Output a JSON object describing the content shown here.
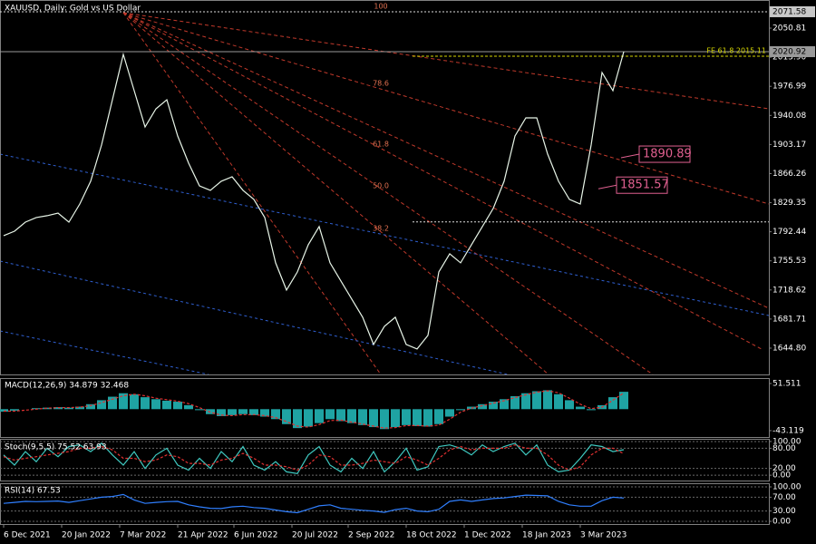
{
  "chart_data": [
    {
      "type": "line",
      "title": "XAUUSD, Daily:  Gold vs US Dollar",
      "color": "#e8f5e8",
      "x": [
        0,
        6,
        12,
        18,
        24,
        30,
        36,
        42,
        48,
        54,
        60,
        66,
        72,
        78,
        84,
        90,
        96,
        102,
        108,
        114,
        120,
        126,
        132,
        138,
        144,
        150,
        156,
        162,
        168,
        174,
        180,
        186,
        192,
        198,
        204,
        210,
        216,
        222,
        228,
        234,
        240,
        246,
        252,
        258,
        264,
        270,
        276,
        282,
        288,
        294,
        300,
        306,
        312,
        318,
        324,
        330,
        336,
        342
      ],
      "values": [
        1787.5,
        1793.2,
        1804.7,
        1810.5,
        1812.8,
        1816.2,
        1804.7,
        1827.7,
        1856.5,
        1902.5,
        1960.0,
        2017.5,
        1971.5,
        1925.5,
        1948.5,
        1960.0,
        1914.0,
        1879.5,
        1850.7,
        1845.0,
        1856.5,
        1862.2,
        1845.0,
        1833.5,
        1810.5,
        1753.0,
        1718.5,
        1741.5,
        1776.0,
        1799.0,
        1753.0,
        1730.0,
        1707.0,
        1684.0,
        1649.5,
        1672.5,
        1684.0,
        1649.5,
        1643.7,
        1661.0,
        1741.5,
        1764.5,
        1753.0,
        1776.0,
        1799.0,
        1822.0,
        1856.5,
        1914.0,
        1937.0,
        1937.0,
        1891.0,
        1856.5,
        1833.5,
        1827.7,
        1902.5,
        1994.5,
        1971.5,
        2020.92
      ],
      "xlim": [
        -2,
        422
      ],
      "xticks": [
        {
          "value": 0,
          "label": "6 Dec 2021"
        },
        {
          "value": 32,
          "label": "20 Jan 2022"
        },
        {
          "value": 64,
          "label": "7 Mar 2022"
        },
        {
          "value": 96,
          "label": "21 Apr 2022"
        },
        {
          "value": 127,
          "label": "6 Jun 2022"
        },
        {
          "value": 159,
          "label": "20 Jul 2022"
        },
        {
          "value": 190,
          "label": "2 Sep 2022"
        },
        {
          "value": 222,
          "label": "18 Oct 2022"
        },
        {
          "value": 254,
          "label": "1 Dec 2022"
        },
        {
          "value": 286,
          "label": "18 Jan 2023"
        },
        {
          "value": 318,
          "label": "3 Mar 2023"
        }
      ],
      "ylim": [
        1611.4,
        2086.5
      ],
      "yticks": [
        2050.81,
        {
          "value": 2013.9,
          "label": "2013.90"
        },
        1976.99,
        1940.08,
        1903.17,
        1866.26,
        1829.35,
        1792.44,
        1755.53,
        1718.62,
        1681.71,
        {
          "value": 1644.8,
          "label": "1644.80"
        }
      ],
      "price_boxes": [
        2071.58,
        2020.92
      ],
      "fe_level": {
        "value": 2015.11,
        "label": "FE 61.8 2015.11"
      },
      "levels": [
        1805
      ],
      "level_labels": [
        1890.89,
        1851.57
      ],
      "fib_labels": [
        "100",
        "78.6",
        "61.8",
        "50.0",
        "38.2"
      ]
    },
    {
      "type": "macd",
      "label": "MACD(12,26,9) 34.879 32.468",
      "values": [
        -5,
        -3,
        0,
        2,
        3,
        4,
        3,
        5,
        10,
        18,
        25,
        32,
        30,
        24,
        20,
        17,
        15,
        8,
        -2,
        -10,
        -14,
        -12,
        -10,
        -12,
        -15,
        -20,
        -30,
        -38,
        -35,
        -28,
        -20,
        -24,
        -28,
        -32,
        -36,
        -40,
        -36,
        -32,
        -34,
        -35,
        -30,
        -15,
        -2,
        5,
        10,
        15,
        20,
        26,
        32,
        36,
        38,
        30,
        18,
        5,
        -2,
        8,
        24,
        34.879
      ],
      "signal": [
        -4,
        -4,
        -2,
        0,
        2,
        3,
        3,
        4,
        7,
        13,
        20,
        27,
        30,
        27,
        22,
        19,
        16,
        11,
        3,
        -6,
        -12,
        -13,
        -11,
        -11,
        -13,
        -17,
        -25,
        -34,
        -36,
        -31,
        -23,
        -22,
        -26,
        -30,
        -34,
        -38,
        -37,
        -33,
        -33,
        -34,
        -32,
        -20,
        -6,
        2,
        7,
        12,
        17,
        23,
        29,
        34,
        37,
        33,
        22,
        10,
        1,
        4,
        18,
        32.468
      ],
      "color": "#1fa3a3",
      "signal_color": "#e03030",
      "ylim": [
        -55.9,
        62.4
      ],
      "yticks": [
        51.511,
        -43.119
      ]
    },
    {
      "type": "stoch",
      "label": "Stoch(9,5,5) 75.52 63.93",
      "values": [
        60,
        30,
        70,
        40,
        80,
        55,
        85,
        90,
        70,
        95,
        60,
        30,
        70,
        20,
        60,
        80,
        30,
        15,
        50,
        20,
        70,
        40,
        85,
        30,
        15,
        40,
        10,
        5,
        60,
        85,
        30,
        10,
        50,
        20,
        70,
        10,
        40,
        80,
        15,
        25,
        85,
        90,
        80,
        60,
        90,
        70,
        85,
        95,
        60,
        90,
        30,
        10,
        15,
        50,
        90,
        85,
        70,
        75.52
      ],
      "signal": [
        55,
        45,
        50,
        55,
        60,
        65,
        70,
        80,
        80,
        85,
        75,
        50,
        50,
        40,
        45,
        60,
        55,
        35,
        35,
        30,
        45,
        50,
        65,
        50,
        30,
        30,
        25,
        15,
        30,
        60,
        55,
        30,
        30,
        35,
        45,
        40,
        35,
        55,
        45,
        30,
        50,
        75,
        85,
        75,
        80,
        80,
        80,
        90,
        80,
        80,
        60,
        30,
        15,
        25,
        60,
        80,
        80,
        63.93
      ],
      "color": "#3fc9c0",
      "signal_color": "#e03030",
      "ylim": [
        -15.8,
        107.9
      ],
      "yticks": [
        {
          "value": 100,
          "label": "100.00"
        },
        {
          "value": 80,
          "label": "80.00"
        },
        {
          "value": 20,
          "label": "20.00"
        },
        {
          "value": 0,
          "label": "0.00"
        }
      ]
    },
    {
      "type": "rsi",
      "label": "RSI(14) 67.53",
      "values": [
        52,
        55,
        58,
        57,
        58,
        59,
        55,
        60,
        65,
        70,
        72,
        78,
        62,
        52,
        55,
        57,
        58,
        48,
        42,
        38,
        37,
        42,
        44,
        40,
        38,
        33,
        28,
        25,
        35,
        45,
        48,
        38,
        35,
        32,
        30,
        26,
        34,
        38,
        30,
        28,
        35,
        58,
        62,
        58,
        62,
        66,
        68,
        72,
        76,
        75,
        74,
        58,
        48,
        44,
        44,
        60,
        70,
        67.53
      ],
      "color": "#2f7fff",
      "ylim": [
        -7.9,
        110.5
      ],
      "yticks": [
        {
          "value": 100,
          "label": "100.00"
        },
        {
          "value": 70,
          "label": "70.00"
        },
        {
          "value": 30,
          "label": "30.00"
        },
        {
          "value": 0,
          "label": "0.00"
        }
      ]
    }
  ]
}
